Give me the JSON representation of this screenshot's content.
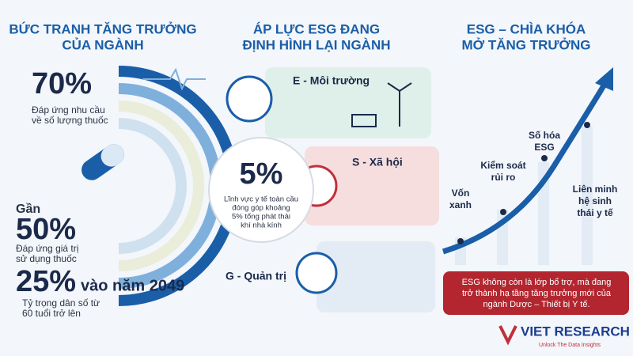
{
  "growth": {
    "title_lines": [
      "BỨC TRANH TĂNG TRƯỞNG",
      "CỦA NGÀNH"
    ],
    "stats": [
      {
        "value": "70%",
        "note": [
          "Đáp ứng nhu cầu",
          "về số lượng thuốc"
        ]
      },
      {
        "prefix": "Gần",
        "value": "50%",
        "note": [
          "Đáp ứng giá trị",
          "sử dụng thuốc"
        ]
      },
      {
        "value": "25%",
        "suffix": "vào năm 2049",
        "note": [
          "Tỷ trọng dân số từ",
          "60 tuổi trở lên"
        ]
      }
    ]
  },
  "esg": {
    "title_lines": [
      "ÁP LỰC ESG ĐANG",
      "ĐỊNH HÌNH LẠI NGÀNH"
    ],
    "share": {
      "value": "5%",
      "note": [
        "Lĩnh vực y tế toàn cầu",
        "đóng góp khoảng",
        "5% tổng phát thải",
        "khí nhà kính"
      ]
    },
    "pillars": [
      "E - Môi trường",
      "S - Xã hội",
      "G - Quản trị"
    ]
  },
  "key": {
    "title_lines": [
      "ESG – CHÌA KHÓA",
      "MỞ TĂNG TRƯỞNG"
    ],
    "milestones": [
      [
        "Vốn",
        "xanh"
      ],
      [
        "Kiểm soát",
        "rủi ro"
      ],
      [
        "Số hóa",
        "ESG"
      ],
      [
        "Liên minh",
        "hệ sinh",
        "thái y tế"
      ]
    ],
    "callout": [
      "ESG không còn là lớp bổ trợ, mà đang",
      "trở thành hạ tầng tăng trưởng mới của",
      "ngành Dược – Thiết bị Y tế."
    ]
  },
  "brand": {
    "name": "VIET RESEARCH",
    "tagline": "Unlock The Data Insights"
  }
}
